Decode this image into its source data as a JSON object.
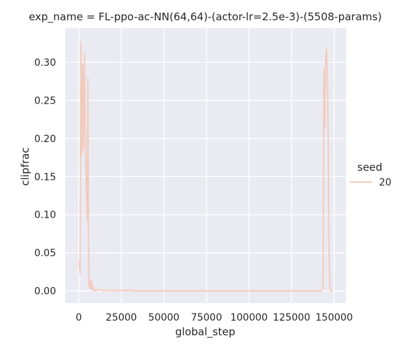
{
  "chart_data": {
    "type": "line",
    "title": "exp_name = FL-ppo-ac-NN(64,64)-(actor-lr=2.5e-3)-(5508-params)",
    "xlabel": "global_step",
    "ylabel": "clipfrac",
    "xlim": [
      -8000,
      157000
    ],
    "ylim": [
      -0.016,
      0.345
    ],
    "xticks": [
      0,
      25000,
      50000,
      75000,
      100000,
      125000,
      150000
    ],
    "xtick_labels": [
      "0",
      "25000",
      "50000",
      "75000",
      "100000",
      "125000",
      "150000"
    ],
    "yticks": [
      0.0,
      0.05,
      0.1,
      0.15,
      0.2,
      0.25,
      0.3
    ],
    "ytick_labels": [
      "0.00",
      "0.05",
      "0.10",
      "0.15",
      "0.20",
      "0.25",
      "0.30"
    ],
    "grid": true,
    "background": "#eaeaf2",
    "legend": {
      "title": "seed",
      "placement": "right"
    },
    "series": [
      {
        "name": "20",
        "color": "#f2cbbd",
        "x": [
          256,
          768,
          1280,
          1792,
          2304,
          2816,
          3328,
          3840,
          4352,
          4864,
          5376,
          5888,
          6400,
          6912,
          7424,
          7936,
          8448,
          8960,
          9472,
          9984,
          10496,
          11008,
          12032,
          13056,
          14080,
          15104,
          16128,
          17152,
          18176,
          19200,
          20224,
          21248,
          22272,
          23296,
          24320,
          25344,
          26368,
          27392,
          28416,
          29440,
          30464,
          31488,
          32512,
          35000,
          40000,
          50000,
          60000,
          70000,
          80000,
          90000,
          100000,
          110000,
          120000,
          130000,
          140000,
          141000,
          142000,
          142500,
          143000,
          143500,
          144000,
          144500,
          145000,
          145500,
          146000,
          146500,
          147000,
          147500,
          148000,
          148500,
          149000
        ],
        "values": [
          0.039,
          0.022,
          0.327,
          0.178,
          0.298,
          0.186,
          0.312,
          0.2,
          0.145,
          0.092,
          0.279,
          0.005,
          0.013,
          0.003,
          0.014,
          0.001,
          0.006,
          0.0,
          0.001,
          0.0,
          0.002,
          0.001,
          0.001,
          0.002,
          0.0,
          0.001,
          0.001,
          0.0,
          0.001,
          0.0,
          0.001,
          0.0,
          0.001,
          0.0,
          0.001,
          0.0,
          0.001,
          0.0,
          0.001,
          0.0,
          0.002,
          0.0,
          0.0,
          0.0,
          0.0,
          0.0,
          0.0,
          0.0,
          0.0,
          0.0,
          0.0,
          0.0,
          0.0,
          0.0,
          0.0,
          0.0,
          0.0,
          0.0,
          0.001,
          0.006,
          0.29,
          0.213,
          0.306,
          0.318,
          0.285,
          0.201,
          0.05,
          0.004,
          0.0,
          0.0,
          0.0
        ]
      }
    ]
  }
}
